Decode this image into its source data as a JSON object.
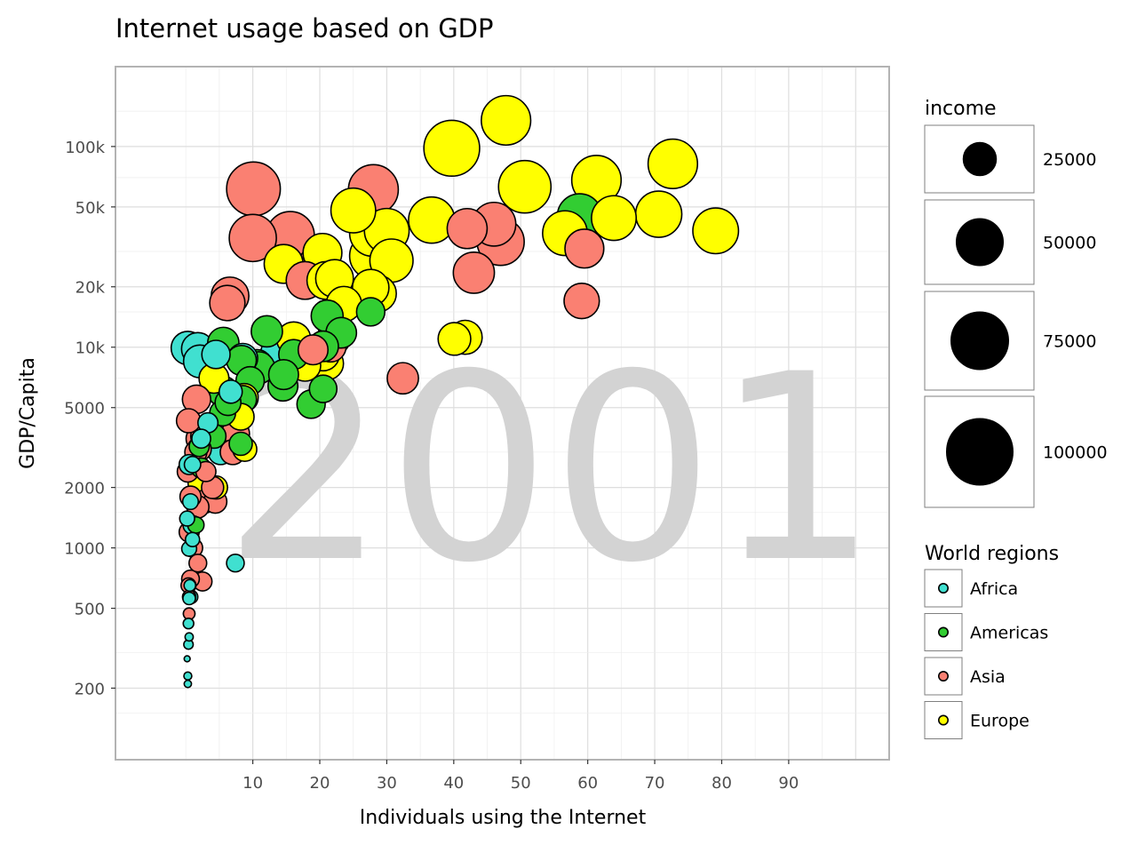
{
  "chart_data": {
    "type": "scatter",
    "title": "Internet usage based on GDP",
    "xlabel": "Individuals using the Internet",
    "ylabel": "GDP/Capita",
    "watermark": "2001",
    "x_scale": "linear",
    "y_scale": "log10",
    "xlim": [
      -10.5,
      105
    ],
    "ylim": [
      88,
      250000
    ],
    "x_ticks": [
      10,
      20,
      30,
      40,
      50,
      60,
      70,
      80,
      90
    ],
    "x_tick_labels": [
      "10",
      "20",
      "30",
      "40",
      "50",
      "60",
      "70",
      "80",
      "90"
    ],
    "y_ticks": [
      200,
      500,
      1000,
      2000,
      5000,
      10000,
      20000,
      50000,
      100000
    ],
    "y_tick_labels": [
      "200",
      "500",
      "1000",
      "2000",
      "5000",
      "10k",
      "20k",
      "50k",
      "100k"
    ],
    "grid": true,
    "legend_position": "right",
    "size_legend": {
      "title": "income",
      "entries": [
        {
          "label": "25000",
          "value": 25000
        },
        {
          "label": "50000",
          "value": 50000
        },
        {
          "label": "75000",
          "value": 75000
        },
        {
          "label": "100000",
          "value": 100000
        }
      ]
    },
    "color_legend": {
      "title": "World regions",
      "entries": [
        {
          "label": "Africa",
          "color": "#40e0d0"
        },
        {
          "label": "Americas",
          "color": "#32cd32"
        },
        {
          "label": "Asia",
          "color": "#fa8072"
        },
        {
          "label": "Europe",
          "color": "#ffff00"
        }
      ]
    },
    "series": [
      {
        "name": "Africa",
        "color": "#40e0d0",
        "points": [
          {
            "x": 0.3,
            "y": 210,
            "income": 1200
          },
          {
            "x": 0.3,
            "y": 230,
            "income": 1400
          },
          {
            "x": 0.2,
            "y": 280,
            "income": 800
          },
          {
            "x": 0.4,
            "y": 330,
            "income": 2000
          },
          {
            "x": 0.5,
            "y": 360,
            "income": 1500
          },
          {
            "x": 0.4,
            "y": 420,
            "income": 2500
          },
          {
            "x": 0.5,
            "y": 470,
            "income": 3000
          },
          {
            "x": 0.5,
            "y": 560,
            "income": 3500
          },
          {
            "x": 0.8,
            "y": 570,
            "income": 4000
          },
          {
            "x": 0.6,
            "y": 650,
            "income": 3000
          },
          {
            "x": 0.5,
            "y": 990,
            "income": 5000
          },
          {
            "x": 1.0,
            "y": 1100,
            "income": 4500
          },
          {
            "x": 0.2,
            "y": 1400,
            "income": 5000
          },
          {
            "x": 1.0,
            "y": 1300,
            "income": 8000
          },
          {
            "x": 0.7,
            "y": 1700,
            "income": 5500
          },
          {
            "x": 1.0,
            "y": 2600,
            "income": 6000
          },
          {
            "x": 0.5,
            "y": 2600,
            "income": 9000
          },
          {
            "x": 2.3,
            "y": 3500,
            "income": 8000
          },
          {
            "x": 3.3,
            "y": 4200,
            "income": 9000
          },
          {
            "x": 5.2,
            "y": 3000,
            "income": 14000
          },
          {
            "x": 6.7,
            "y": 6000,
            "income": 12000
          },
          {
            "x": 7.4,
            "y": 840,
            "income": 7000
          },
          {
            "x": 0.3,
            "y": 9900,
            "income": 25000
          },
          {
            "x": 1.8,
            "y": 9800,
            "income": 24000
          },
          {
            "x": 2.1,
            "y": 8500,
            "income": 24000
          },
          {
            "x": 4.5,
            "y": 9200,
            "income": 18000
          },
          {
            "x": 8.5,
            "y": 8800,
            "income": 20000
          },
          {
            "x": 13.7,
            "y": 9300,
            "income": 26000
          }
        ]
      },
      {
        "name": "Americas",
        "color": "#32cd32",
        "points": [
          {
            "x": 1.5,
            "y": 1300,
            "income": 6000
          },
          {
            "x": 2.3,
            "y": 2500,
            "income": 9000
          },
          {
            "x": 2.0,
            "y": 3200,
            "income": 9000
          },
          {
            "x": 4.2,
            "y": 3600,
            "income": 13000
          },
          {
            "x": 5.5,
            "y": 4700,
            "income": 15000
          },
          {
            "x": 6.3,
            "y": 5300,
            "income": 15000
          },
          {
            "x": 8.2,
            "y": 3300,
            "income": 12000
          },
          {
            "x": 8.5,
            "y": 5500,
            "income": 17000
          },
          {
            "x": 9.6,
            "y": 6800,
            "income": 18000
          },
          {
            "x": 8.3,
            "y": 8600,
            "income": 20000
          },
          {
            "x": 12.1,
            "y": 12000,
            "income": 22000
          },
          {
            "x": 10.6,
            "y": 8100,
            "income": 23000
          },
          {
            "x": 14.5,
            "y": 6400,
            "income": 20000
          },
          {
            "x": 16.1,
            "y": 9200,
            "income": 20000
          },
          {
            "x": 14.6,
            "y": 7300,
            "income": 20000
          },
          {
            "x": 18.7,
            "y": 5200,
            "income": 18000
          },
          {
            "x": 20.5,
            "y": 6200,
            "income": 17000
          },
          {
            "x": 23.2,
            "y": 11800,
            "income": 21000
          },
          {
            "x": 20.5,
            "y": 10100,
            "income": 21000
          },
          {
            "x": 21.1,
            "y": 14300,
            "income": 23000
          },
          {
            "x": 22.0,
            "y": 11000,
            "income": 25000
          },
          {
            "x": 27.6,
            "y": 15000,
            "income": 18000
          },
          {
            "x": 5.6,
            "y": 6000,
            "income": 21000
          },
          {
            "x": 5.6,
            "y": 10500,
            "income": 22000
          },
          {
            "x": 10.9,
            "y": 7900,
            "income": 23000
          },
          {
            "x": 58.8,
            "y": 45000,
            "income": 45000
          }
        ]
      },
      {
        "name": "Asia",
        "color": "#fa8072",
        "points": [
          {
            "x": 0.5,
            "y": 470,
            "income": 3000
          },
          {
            "x": 0.5,
            "y": 570,
            "income": 4000
          },
          {
            "x": 0.4,
            "y": 650,
            "income": 5000
          },
          {
            "x": 0.7,
            "y": 700,
            "income": 7000
          },
          {
            "x": 1.8,
            "y": 840,
            "income": 7000
          },
          {
            "x": 2.5,
            "y": 680,
            "income": 8000
          },
          {
            "x": 1.1,
            "y": 1000,
            "income": 8000
          },
          {
            "x": 0.5,
            "y": 1200,
            "income": 9000
          },
          {
            "x": 0.7,
            "y": 1800,
            "income": 10000
          },
          {
            "x": 1.8,
            "y": 1600,
            "income": 11000
          },
          {
            "x": 2.8,
            "y": 1700,
            "income": 12000
          },
          {
            "x": 4.0,
            "y": 2000,
            "income": 11000
          },
          {
            "x": 0.3,
            "y": 2400,
            "income": 10000
          },
          {
            "x": 3.0,
            "y": 2400,
            "income": 9000
          },
          {
            "x": 4.4,
            "y": 1700,
            "income": 12000
          },
          {
            "x": 1.5,
            "y": 3000,
            "income": 11000
          },
          {
            "x": 2.0,
            "y": 3100,
            "income": 13000
          },
          {
            "x": 1.9,
            "y": 3500,
            "income": 14000
          },
          {
            "x": 0.4,
            "y": 4300,
            "income": 13000
          },
          {
            "x": 2.6,
            "y": 3600,
            "income": 14000
          },
          {
            "x": 1.6,
            "y": 5500,
            "income": 18000
          },
          {
            "x": 7.0,
            "y": 3000,
            "income": 14000
          },
          {
            "x": 7.4,
            "y": 3700,
            "income": 18000
          },
          {
            "x": 32.4,
            "y": 7000,
            "income": 22000
          },
          {
            "x": 19.0,
            "y": 9700,
            "income": 20000
          },
          {
            "x": 21.6,
            "y": 10100,
            "income": 22000
          },
          {
            "x": 6.6,
            "y": 18000,
            "income": 32000
          },
          {
            "x": 6.2,
            "y": 16600,
            "income": 28000
          },
          {
            "x": 17.8,
            "y": 21500,
            "income": 32000
          },
          {
            "x": 19.4,
            "y": 25000,
            "income": 34000
          },
          {
            "x": 15.6,
            "y": 36000,
            "income": 52000
          },
          {
            "x": 10.0,
            "y": 35000,
            "income": 50000
          },
          {
            "x": 10.1,
            "y": 61500,
            "income": 65000
          },
          {
            "x": 28.0,
            "y": 61000,
            "income": 56000
          },
          {
            "x": 43.0,
            "y": 23500,
            "income": 38000
          },
          {
            "x": 47.0,
            "y": 33500,
            "income": 50000
          },
          {
            "x": 46.0,
            "y": 41000,
            "income": 43000
          },
          {
            "x": 59.5,
            "y": 31000,
            "income": 34000
          },
          {
            "x": 59.1,
            "y": 17000,
            "income": 28000
          },
          {
            "x": 42.0,
            "y": 39000,
            "income": 36000
          }
        ]
      },
      {
        "name": "Europe",
        "color": "#ffff00",
        "points": [
          {
            "x": 2.2,
            "y": 2100,
            "income": 14000
          },
          {
            "x": 4.5,
            "y": 2000,
            "income": 12000
          },
          {
            "x": 8.8,
            "y": 3100,
            "income": 13000
          },
          {
            "x": 8.2,
            "y": 4500,
            "income": 16000
          },
          {
            "x": 4.2,
            "y": 7000,
            "income": 20000
          },
          {
            "x": 8.7,
            "y": 5600,
            "income": 18000
          },
          {
            "x": 17.8,
            "y": 8100,
            "income": 22000
          },
          {
            "x": 21.1,
            "y": 8300,
            "income": 24000
          },
          {
            "x": 20.5,
            "y": 9200,
            "income": 24000
          },
          {
            "x": 16.1,
            "y": 11000,
            "income": 26000
          },
          {
            "x": 23.6,
            "y": 16400,
            "income": 28000
          },
          {
            "x": 20.9,
            "y": 21500,
            "income": 32000
          },
          {
            "x": 28.7,
            "y": 18500,
            "income": 30000
          },
          {
            "x": 27.6,
            "y": 19800,
            "income": 30000
          },
          {
            "x": 22.2,
            "y": 22000,
            "income": 32000
          },
          {
            "x": 30.7,
            "y": 27000,
            "income": 42000
          },
          {
            "x": 27.9,
            "y": 28500,
            "income": 48000
          },
          {
            "x": 30.0,
            "y": 38000,
            "income": 45000
          },
          {
            "x": 27.9,
            "y": 37000,
            "income": 48000
          },
          {
            "x": 25.0,
            "y": 48000,
            "income": 45000
          },
          {
            "x": 36.7,
            "y": 43000,
            "income": 48000
          },
          {
            "x": 14.6,
            "y": 26000,
            "income": 34000
          },
          {
            "x": 20.4,
            "y": 29500,
            "income": 34000
          },
          {
            "x": 40.1,
            "y": 11000,
            "income": 24000
          },
          {
            "x": 41.7,
            "y": 11200,
            "income": 26000
          },
          {
            "x": 39.7,
            "y": 98000,
            "income": 70000
          },
          {
            "x": 47.8,
            "y": 135000,
            "income": 55000
          },
          {
            "x": 50.6,
            "y": 63000,
            "income": 62000
          },
          {
            "x": 61.3,
            "y": 68000,
            "income": 55000
          },
          {
            "x": 56.6,
            "y": 37000,
            "income": 45000
          },
          {
            "x": 58.6,
            "y": 41000,
            "income": 50000
          },
          {
            "x": 63.9,
            "y": 44000,
            "income": 45000
          },
          {
            "x": 70.6,
            "y": 46000,
            "income": 48000
          },
          {
            "x": 72.7,
            "y": 82000,
            "income": 55000
          },
          {
            "x": 79.1,
            "y": 38000,
            "income": 47000
          }
        ]
      }
    ]
  }
}
